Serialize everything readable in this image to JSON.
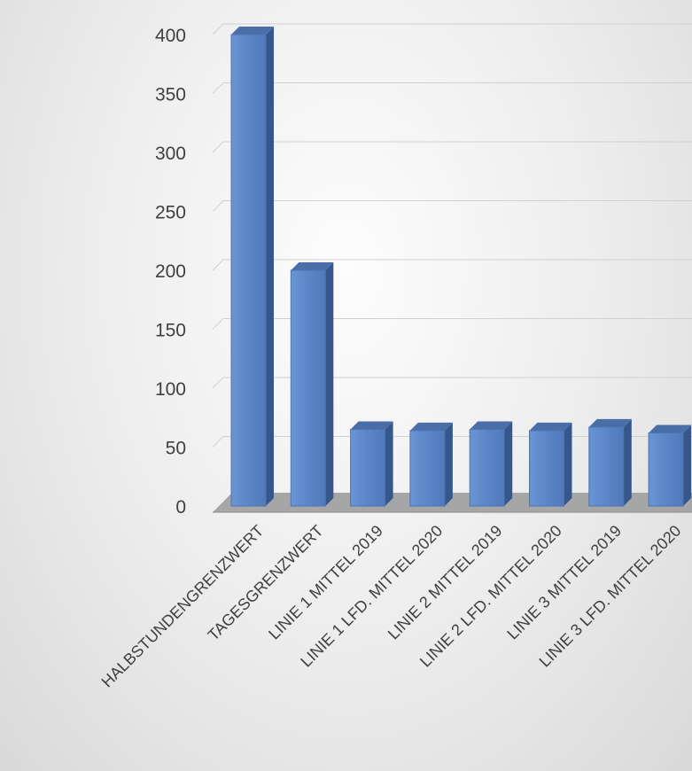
{
  "chart_data": {
    "type": "bar",
    "categories": [
      "HALBSTUNDENGRENZWERT",
      "TAGESGRENZWERT",
      "LINIE 1 MITTEL 2019",
      "LINIE 1 LFD. MITTEL 2020",
      "LINIE 2 MITTEL 2019",
      "LINIE 2 LFD. MITTEL 2020",
      "LINIE 3 MITTEL 2019",
      "LINIE 3 LFD. MITTEL 2020"
    ],
    "values": [
      400,
      200,
      65,
      64,
      65,
      64,
      67,
      62
    ],
    "title": "",
    "xlabel": "",
    "ylabel": "",
    "ylim": [
      0,
      400
    ],
    "yticks": [
      0,
      50,
      100,
      150,
      200,
      250,
      300,
      350,
      400
    ],
    "grid": true,
    "legend": "none",
    "colors": {
      "bar_front": "#5b86c7",
      "bar_side": "#35578c",
      "bar_top": "#4a6fa8",
      "floor": "#a6a6a6",
      "gridline": "#d0d0d0"
    }
  }
}
